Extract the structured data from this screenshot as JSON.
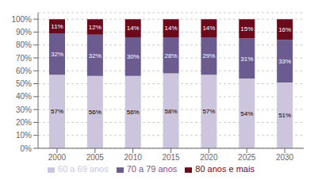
{
  "chart_data": {
    "type": "bar",
    "stacked": true,
    "categories": [
      "2000",
      "2005",
      "2010",
      "2015",
      "2020",
      "2025",
      "2030"
    ],
    "series": [
      {
        "name": "60 a 69 anos",
        "color": "#cdc5de",
        "values": [
          57,
          56,
          56,
          58,
          57,
          54,
          51
        ],
        "value_labels": [
          "57%",
          "56%",
          "56%",
          "58%",
          "57%",
          "54%",
          "51%"
        ]
      },
      {
        "name": "70 a 79 anos",
        "color": "#6b5b8e",
        "values": [
          32,
          32,
          30,
          28,
          29,
          31,
          33
        ],
        "value_labels": [
          "32%",
          "32%",
          "30%",
          "28%",
          "29%",
          "31%",
          "33%"
        ]
      },
      {
        "name": "80 anos e mais",
        "color": "#6b0a1a",
        "values": [
          11,
          12,
          14,
          14,
          14,
          15,
          16
        ],
        "value_labels": [
          "11%",
          "12%",
          "14%",
          "14%",
          "14%",
          "15%",
          "16%"
        ]
      }
    ],
    "ylim": [
      0,
      105
    ],
    "yticks": [
      {
        "value": 0,
        "label": "0%"
      },
      {
        "value": 10,
        "label": "10%"
      },
      {
        "value": 20,
        "label": "20%"
      },
      {
        "value": 30,
        "label": "30%"
      },
      {
        "value": 40,
        "label": "40%"
      },
      {
        "value": 50,
        "label": "50%"
      },
      {
        "value": 60,
        "label": "60%"
      },
      {
        "value": 70,
        "label": "70%"
      },
      {
        "value": 80,
        "label": "80%"
      },
      {
        "value": 90,
        "label": "90%"
      },
      {
        "value": 100,
        "label": "100%"
      }
    ],
    "grid": true,
    "legend": "bottom",
    "data_labels": true
  }
}
